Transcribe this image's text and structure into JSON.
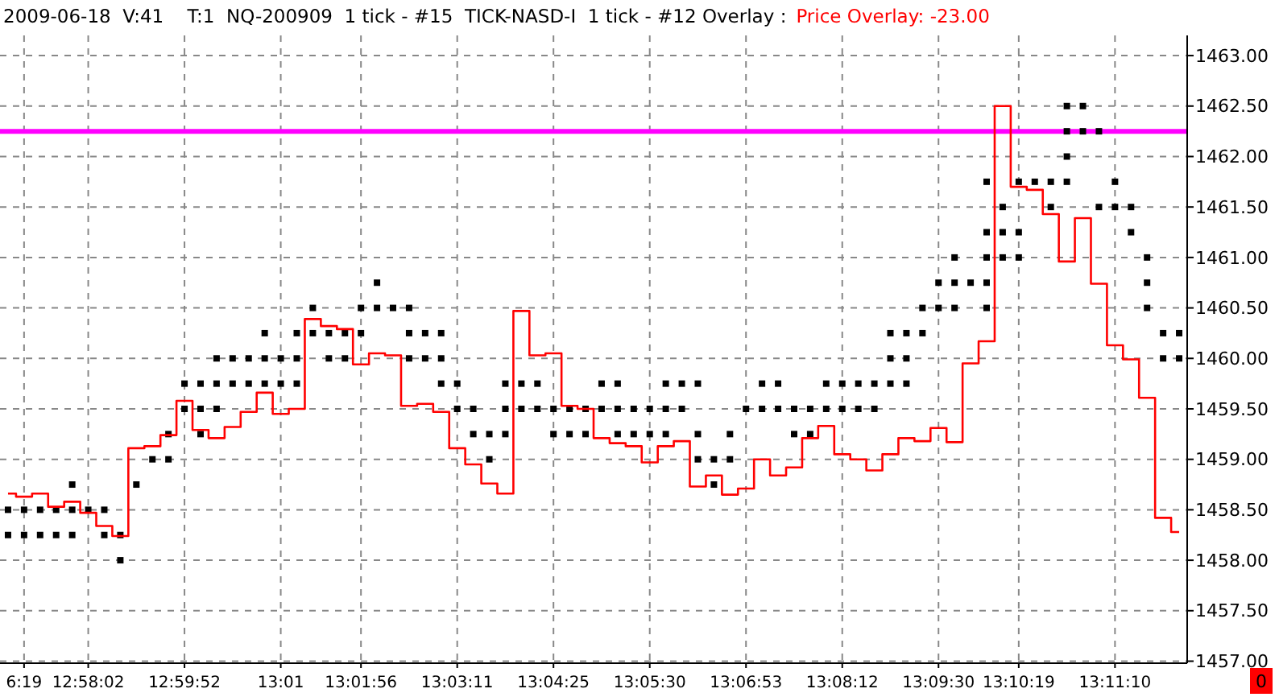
{
  "chart_data": {
    "type": "step",
    "title": "2009-06-18  V:41    T:1  NQ-200909  1 tick - #15  TICK-NASD-I  1 tick - #12 Overlay :",
    "subtitle": "Price Overlay: -23.00",
    "categories": [
      null,
      "6:19",
      null,
      null,
      null,
      "12:58:02",
      null,
      null,
      null,
      null,
      null,
      "12:59:52",
      null,
      null,
      null,
      null,
      null,
      "13:01",
      null,
      null,
      null,
      null,
      "13:01:56",
      null,
      null,
      null,
      null,
      null,
      "13:03:11",
      null,
      null,
      null,
      null,
      null,
      "13:04:25",
      null,
      null,
      null,
      null,
      null,
      "13:05:30",
      null,
      null,
      null,
      null,
      null,
      "13:06:53",
      null,
      null,
      null,
      null,
      null,
      "13:08:12",
      null,
      null,
      null,
      null,
      null,
      "13:09:30",
      null,
      null,
      null,
      null,
      "13:10:19",
      null,
      null,
      null,
      null,
      null,
      "13:11:10",
      null,
      null,
      null,
      null
    ],
    "ylim": [
      1456.98,
      1463.2
    ],
    "yticks": [
      {
        "value": 1457,
        "label": "1457.00"
      },
      {
        "value": 1457.5,
        "label": "1457.50"
      },
      {
        "value": 1458,
        "label": "1458.00"
      },
      {
        "value": 1458.5,
        "label": "1458.50"
      },
      {
        "value": 1459,
        "label": "1459.00"
      },
      {
        "value": 1459.5,
        "label": "1459.50"
      },
      {
        "value": 1460,
        "label": "1460.00"
      },
      {
        "value": 1460.5,
        "label": "1460.50"
      },
      {
        "value": 1461,
        "label": "1461.00"
      },
      {
        "value": 1461.5,
        "label": "1461.50"
      },
      {
        "value": 1462,
        "label": "1462.00"
      },
      {
        "value": 1462.5,
        "label": "1462.50"
      },
      {
        "value": 1463,
        "label": "1463.00"
      }
    ],
    "grid": true,
    "ref_lines": [
      {
        "axis": "y",
        "value": 1462.25,
        "color": "#ff00ff"
      }
    ],
    "annotations": [
      "0"
    ],
    "series": [
      {
        "type": "scatter",
        "marker": "square",
        "color": "#000000",
        "values": [
          1458.5,
          1458.5,
          1458.5,
          1458.5,
          1458.75,
          1458.5,
          1458.5,
          1458.25,
          1458.75,
          1459,
          1459.25,
          1459.75,
          1459.75,
          1460,
          1460,
          1460,
          1460.25,
          1460,
          1460.25,
          1460.5,
          1460.25,
          1460.25,
          1460.5,
          1460.75,
          1460.5,
          1460.5,
          1460.25,
          1460.25,
          1459.75,
          1459.5,
          1459.25,
          1459.75,
          1459.75,
          1459.75,
          1459.5,
          1459.5,
          1459.5,
          1459.75,
          1459.75,
          1459.5,
          1459.5,
          1459.75,
          1459.75,
          1459.75,
          1459,
          1459.25,
          1459.5,
          1459.75,
          1459.75,
          1459.5,
          1459.5,
          1459.75,
          1459.75,
          1459.75,
          1459.75,
          1460.25,
          1460.25,
          1460.5,
          1460.75,
          1461,
          1460.75,
          1461.75,
          1461.5,
          1461.75,
          1461.75,
          1461.75,
          1462.5,
          1462.5,
          1462.25,
          1461.75,
          1461.5,
          1461,
          1460.25,
          1460.25
        ]
      },
      {
        "type": "scatter",
        "marker": "square",
        "color": "#000000",
        "values": [
          1458.25,
          1458.25,
          1458.25,
          1458.25,
          1458.5,
          null,
          1458.25,
          1458,
          null,
          null,
          1459,
          1459.5,
          1459.5,
          1459.75,
          1459.75,
          1459.75,
          1460,
          1459.75,
          1460,
          1460.25,
          1460,
          1460,
          1460.25,
          1460.5,
          null,
          1460.25,
          1460,
          1460,
          1459.5,
          1459.25,
          1459,
          1459.5,
          1459.5,
          1459.5,
          1459.25,
          1459.25,
          1459.25,
          1459.5,
          1459.5,
          1459.25,
          1459.25,
          1459.5,
          1459.5,
          1459.25,
          1458.75,
          1459,
          null,
          1459.5,
          1459.5,
          1459.25,
          1459.25,
          1459.5,
          1459.5,
          1459.5,
          1459.5,
          1460,
          1460,
          1460.25,
          1460.5,
          1460.75,
          null,
          1461.25,
          1461.25,
          1461.25,
          null,
          1461.5,
          1462.25,
          1462.25,
          1461.5,
          1461.5,
          1461.25,
          1460.75,
          1460,
          1460
        ]
      },
      {
        "type": "scatter",
        "marker": "square",
        "color": "#000000",
        "values": [
          null,
          null,
          null,
          null,
          1458.25,
          null,
          null,
          null,
          null,
          null,
          null,
          null,
          1459.25,
          1459.5,
          null,
          null,
          1459.75,
          null,
          1459.75,
          null,
          null,
          null,
          null,
          null,
          null,
          1460,
          null,
          1459.75,
          null,
          null,
          null,
          1459.25,
          null,
          null,
          null,
          null,
          null,
          null,
          1459.25,
          null,
          null,
          1459.25,
          null,
          1459,
          null,
          null,
          null,
          null,
          null,
          null,
          null,
          null,
          null,
          null,
          null,
          1459.75,
          1459.75,
          null,
          null,
          1460.5,
          null,
          1461,
          1461,
          1461,
          null,
          null,
          1462,
          null,
          null,
          null,
          null,
          1460.5,
          null,
          null
        ]
      },
      {
        "type": "scatter",
        "color": "#000000",
        "values": [
          null,
          null,
          null,
          null,
          null,
          null,
          null,
          null,
          null,
          null,
          null,
          null,
          null,
          null,
          null,
          null,
          null,
          null,
          null,
          null,
          null,
          null,
          null,
          null,
          null,
          null,
          null,
          null,
          null,
          null,
          null,
          null,
          null,
          null,
          null,
          null,
          null,
          null,
          null,
          null,
          null,
          null,
          null,
          null,
          null,
          null,
          null,
          null,
          null,
          null,
          null,
          null,
          null,
          null,
          null,
          null,
          null,
          null,
          null,
          null,
          null,
          1460.75,
          null,
          null,
          null,
          null,
          1461.75,
          null,
          null,
          null,
          null,
          null,
          null,
          null
        ],
        "marker": "square"
      },
      {
        "type": "scatter",
        "color": "#000000",
        "values": [
          null,
          null,
          null,
          null,
          null,
          null,
          null,
          null,
          null,
          null,
          null,
          null,
          null,
          null,
          null,
          null,
          null,
          null,
          null,
          null,
          null,
          null,
          null,
          null,
          null,
          null,
          null,
          null,
          null,
          null,
          null,
          null,
          null,
          null,
          null,
          null,
          null,
          null,
          null,
          null,
          null,
          null,
          null,
          null,
          null,
          null,
          null,
          null,
          null,
          null,
          null,
          null,
          null,
          null,
          null,
          null,
          null,
          null,
          null,
          null,
          null,
          1460.5,
          null,
          null,
          null,
          null,
          null,
          null,
          null,
          null,
          null,
          null,
          null,
          null
        ],
        "marker": "square"
      },
      {
        "color": "#ff0000",
        "values": [
          1458.66,
          1458.63,
          1458.66,
          1458.53,
          1458.58,
          1458.47,
          1458.34,
          1458.24,
          1459.11,
          1459.13,
          1459.24,
          1459.58,
          1459.29,
          1459.21,
          1459.32,
          1459.47,
          1459.66,
          1459.45,
          1459.5,
          1460.39,
          1460.32,
          1460.29,
          1459.94,
          1460.05,
          1460.03,
          1459.53,
          1459.55,
          1459.47,
          1459.11,
          1458.95,
          1458.76,
          1458.66,
          1460.47,
          1460.03,
          1460.05,
          1459.53,
          1459.5,
          1459.21,
          1459.16,
          1459.13,
          1458.97,
          1459.13,
          1459.18,
          1458.73,
          1458.84,
          1458.65,
          1458.71,
          1459.0,
          1458.84,
          1458.92,
          1459.21,
          1459.33,
          1459.05,
          1459.0,
          1458.89,
          1459.05,
          1459.21,
          1459.18,
          1459.31,
          1459.17,
          1459.95,
          1460.17,
          1462.5,
          1461.7,
          1461.67,
          1461.43,
          1460.96,
          1461.39,
          1460.74,
          1460.13,
          1459.99,
          1459.61,
          1458.42,
          1458.28
        ]
      }
    ]
  }
}
